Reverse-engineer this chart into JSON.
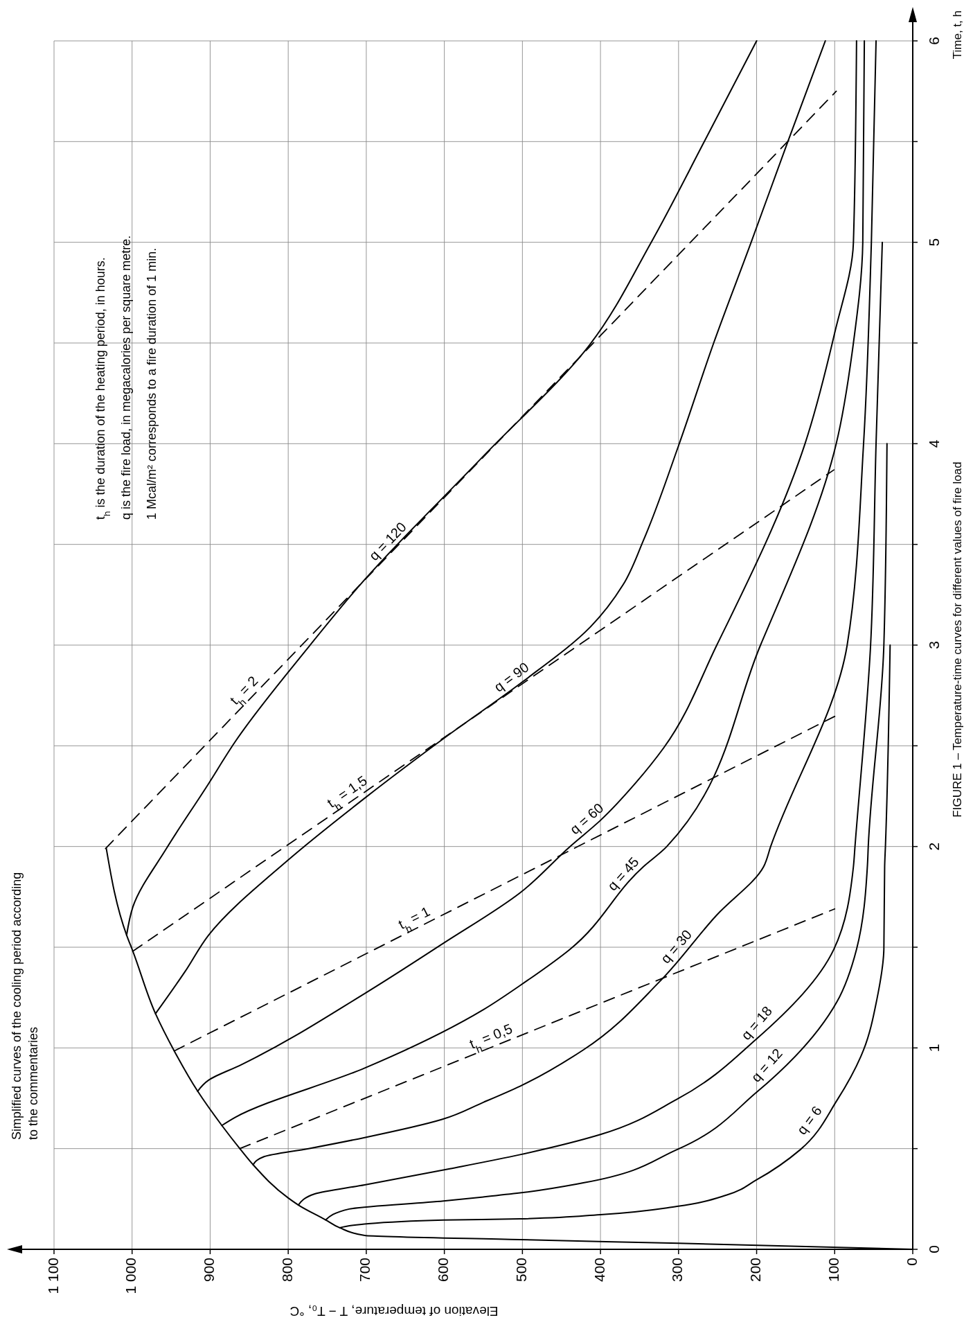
{
  "chart_data": {
    "type": "line",
    "title": "FIGURE 1 – Temperature-time curves for different values of fire load",
    "xlabel": "Elevation of temperature, T − T₀, °C",
    "ylabel": "Time, t, h",
    "xlim": [
      1100,
      0
    ],
    "ylim": [
      0,
      6
    ],
    "xticks": [
      0,
      100,
      200,
      300,
      400,
      500,
      600,
      700,
      800,
      900,
      {
        "value": 1000,
        "label": "1 000"
      },
      {
        "value": 1100,
        "label": "1 100"
      }
    ],
    "yticks": [
      0,
      {
        "value": 0.5,
        "label": null
      },
      1,
      {
        "value": 1.5,
        "label": null
      },
      2,
      {
        "value": 2.5,
        "label": null
      },
      3,
      {
        "value": 3.5,
        "label": null
      },
      4,
      {
        "value": 4.5,
        "label": null
      },
      5,
      {
        "value": 5.5,
        "label": null
      },
      6
    ],
    "grid": true,
    "line_style": "solid",
    "annotations": [
      "Simplified curves of the cooling period according to the commentaries",
      "t$_{h}$ is the duration of the heating period, in hours.",
      "q is the fire load, in megacalories per square metre.",
      "1 Mcal/m² corresponds to a fire duration of 1 min."
    ],
    "series": [
      {
        "color": "#000000",
        "values": [
          0,
          0.03,
          0.048,
          0.069,
          0.107,
          0.146,
          0.22,
          0.255,
          0.42,
          0.5,
          0.615,
          0.785,
          0.985,
          1.17,
          1.48,
          1.56,
          1.99
        ],
        "x": [
          0,
          300,
          503,
          702,
          734,
          752,
          787,
          800,
          845,
          862,
          885,
          916,
          946,
          970,
          999,
          1007,
          1033
        ]
      },
      {
        "name": "q = 6",
        "color": "#000000",
        "values": [
          0.107,
          0.124,
          0.145,
          0.151,
          0.172,
          0.213,
          0.27,
          0.345,
          0.495,
          0.74,
          0.99,
          1.24,
          1.49,
          1.9,
          2,
          3
        ],
        "x": [
          734,
          706,
          601,
          503,
          400,
          302,
          238,
          200,
          144,
          97,
          63,
          46,
          37,
          36,
          35,
          29
        ]
      },
      {
        "name": "q = 12",
        "color": "#000000",
        "values": [
          0.146,
          0.2,
          0.24,
          0.26,
          0.28,
          0.33,
          0.495,
          0.78,
          1.23,
          1.49,
          1.91,
          2,
          3,
          4
        ],
        "x": [
          752,
          722,
          601,
          550,
          503,
          422,
          302,
          200,
          97,
          72,
          58,
          57,
          37,
          33
        ]
      },
      {
        "name": "q = 18",
        "color": "#000000",
        "values": [
          0.22,
          0.275,
          0.32,
          0.4,
          0.47,
          0.57,
          0.745,
          1.045,
          1.49,
          1.9,
          2,
          3,
          4,
          5
        ],
        "x": [
          787,
          766,
          702,
          593,
          503,
          400,
          302,
          200,
          101,
          76,
          74,
          54,
          47,
          39
        ]
      },
      {
        "name": "q = 30",
        "color": "#000000",
        "values": [
          0.42,
          0.46,
          0.5,
          0.555,
          0.645,
          0.73,
          0.81,
          0.99,
          1.33,
          1.66,
          1.9,
          2,
          3,
          4,
          5,
          6
        ],
        "x": [
          845,
          831,
          774,
          702,
          603,
          550,
          503,
          422,
          324,
          251,
          191,
          182,
          84,
          63,
          53,
          47
        ]
      },
      {
        "name": "q = 45",
        "color": "#000000",
        "values": [
          0.615,
          0.655,
          0.9,
          1.19,
          1.31,
          1.49,
          1.9,
          2,
          3,
          4,
          4.5,
          5,
          6
        ],
        "x": [
          885,
          868,
          702,
          550,
          503,
          439,
          345,
          315,
          195,
          98,
          76,
          64,
          62
        ]
      },
      {
        "name": "q = 60",
        "color": "#000000",
        "values": [
          0.785,
          0.84,
          0.915,
          1.27,
          1.52,
          1.77,
          2,
          2.13,
          2.32,
          2.49,
          3,
          4,
          4.55,
          5,
          6
        ],
        "x": [
          916,
          902,
          861,
          702,
          601,
          503,
          439,
          400,
          354,
          319,
          251,
          138,
          100,
          76,
          72
        ]
      },
      {
        "name": "q = 90",
        "color": "#000000",
        "values": [
          1.17,
          1.38,
          1.56,
          1.93,
          2.24,
          2.55,
          2.82,
          3.09,
          3.3,
          3.52,
          3.99,
          4.5,
          5,
          5.5,
          6
        ],
        "x": [
          970,
          932,
          902,
          801,
          702,
          596,
          499,
          413,
          371,
          345,
          300,
          255,
          207,
          160,
          112
        ]
      },
      {
        "name": "q = 120",
        "color": "#000000",
        "values": [
          1.56,
          1.7,
          1.99,
          2.3,
          2.52,
          2.99,
          3.29,
          3.93,
          4.49,
          5,
          5.5,
          6
        ],
        "x": [
          1007,
          999,
          956,
          904,
          868,
          774,
          710,
          552,
          414,
          335,
          267,
          200
        ]
      },
      {
        "name": "t$_{h}$ = 0,5",
        "color": "#000000",
        "line_style": "dashed",
        "values": [
          0.5,
          1.69
        ],
        "x": [
          862,
          100
        ]
      },
      {
        "name": "t$_{h}$ = 1",
        "color": "#000000",
        "line_style": "dashed",
        "values": [
          0.985,
          2.65
        ],
        "x": [
          946,
          98
        ]
      },
      {
        "name": "t$_{h}$ = 1,5",
        "color": "#000000",
        "line_style": "dashed",
        "values": [
          1.48,
          3.87
        ],
        "x": [
          999,
          101
        ]
      },
      {
        "name": "t$_{h}$ = 2",
        "color": "#000000",
        "line_style": "dashed",
        "values": [
          1.99,
          5.75
        ],
        "x": [
          1034,
          98
        ]
      }
    ]
  }
}
